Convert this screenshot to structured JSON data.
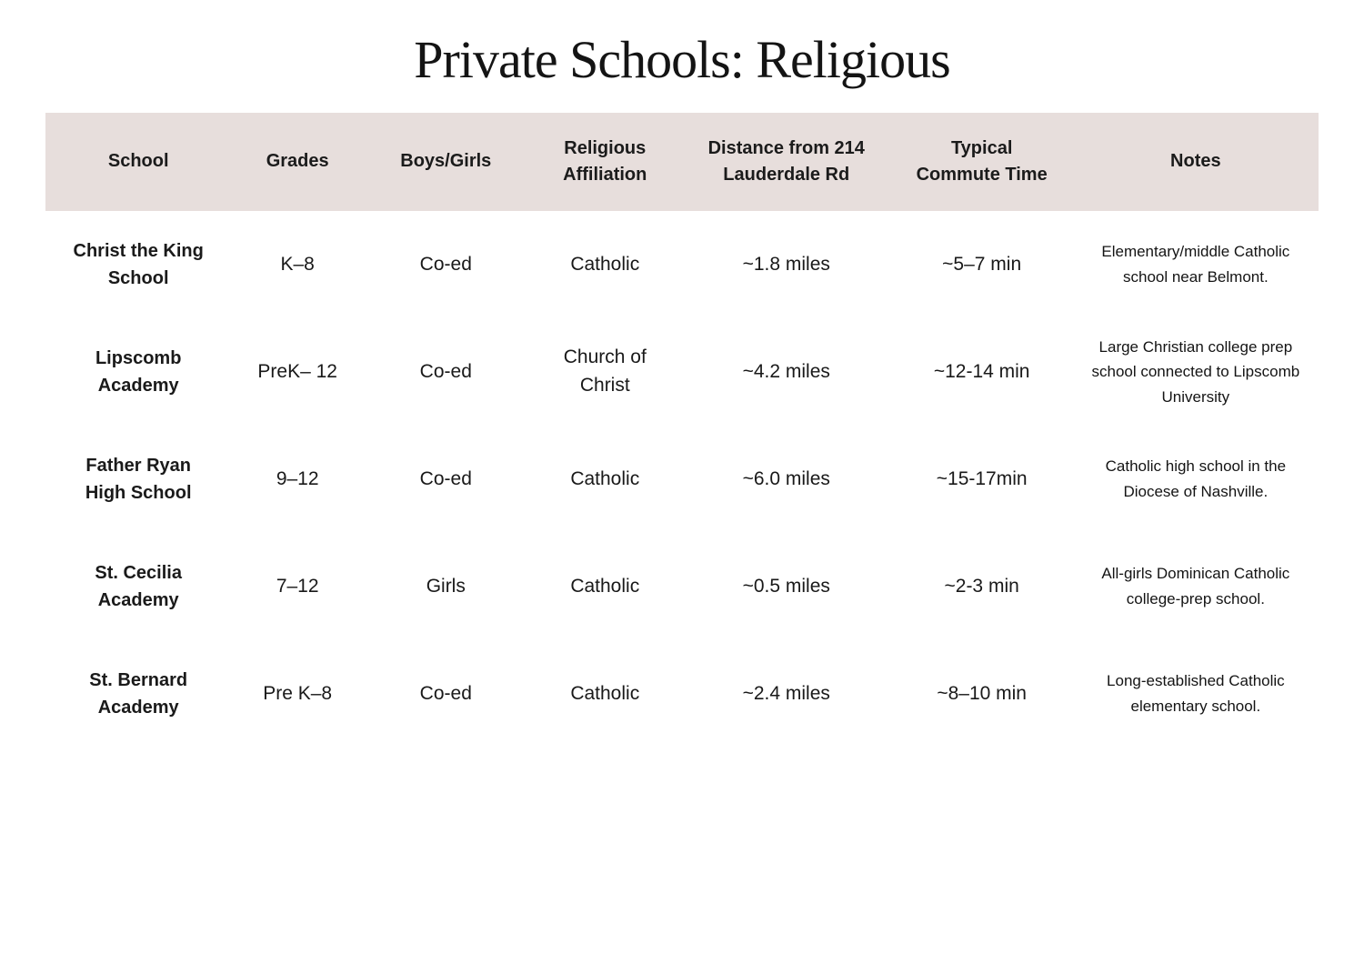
{
  "page": {
    "title": "Private Schools: Religious"
  },
  "colors": {
    "header_band_bg": "#e7dedc",
    "body_bg": "#ffffff",
    "text": "#1a1a1a"
  },
  "table": {
    "columns": [
      {
        "key": "school",
        "label": "School"
      },
      {
        "key": "grades",
        "label": "Grades"
      },
      {
        "key": "boys_girls",
        "label": "Boys/Girls"
      },
      {
        "key": "affiliation",
        "label": "Religious Affiliation"
      },
      {
        "key": "distance",
        "label": "Distance from 214 Lauderdale Rd"
      },
      {
        "key": "commute",
        "label": "Typical Commute Time"
      },
      {
        "key": "notes",
        "label": "Notes"
      }
    ],
    "rows": [
      {
        "school": "Christ the King School",
        "grades": "K–8",
        "boys_girls": "Co-ed",
        "affiliation": "Catholic",
        "distance": "~1.8 miles",
        "commute": "~5–7 min",
        "notes": "Elementary/middle Catholic school near Belmont."
      },
      {
        "school": "Lipscomb Academy",
        "grades": "PreK– 12",
        "boys_girls": "Co-ed",
        "affiliation": "Church of Christ",
        "distance": "~4.2 miles",
        "commute": "~12-14 min",
        "notes": "Large Christian college prep school connected to Lipscomb University"
      },
      {
        "school": "Father Ryan High School",
        "grades": "9–12",
        "boys_girls": "Co-ed",
        "affiliation": "Catholic",
        "distance": "~6.0 miles",
        "commute": "~15-17min",
        "notes": "Catholic high school in the Diocese of Nashville."
      },
      {
        "school": "St. Cecilia Academy",
        "grades": "7–12",
        "boys_girls": "Girls",
        "affiliation": "Catholic",
        "distance": "~0.5 miles",
        "commute": "~2-3 min",
        "notes": "All-girls Dominican Catholic college-prep school."
      },
      {
        "school": "St. Bernard Academy",
        "grades": "Pre K–8",
        "boys_girls": "Co-ed",
        "affiliation": "Catholic",
        "distance": "~2.4 miles",
        "commute": "~8–10 min",
        "notes": "Long-established Catholic elementary school."
      }
    ]
  }
}
